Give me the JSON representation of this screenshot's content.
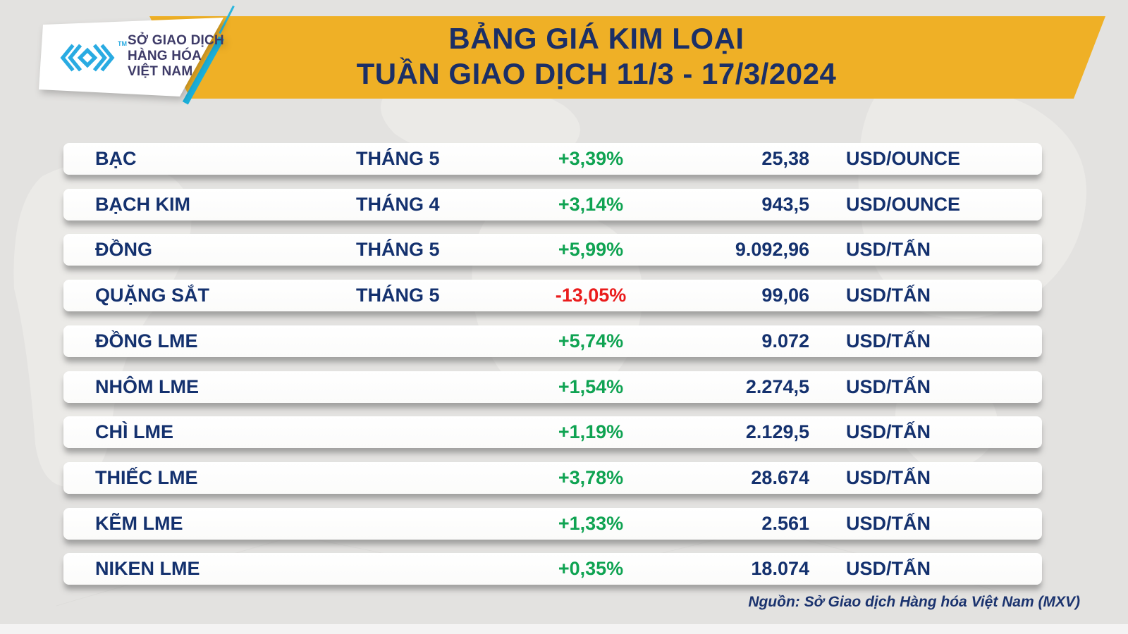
{
  "header": {
    "title_line1": "BẢNG GIÁ KIM LOẠI",
    "title_line2": "TUẦN GIAO DỊCH 11/3 - 17/3/2024"
  },
  "logo": {
    "org_line1": "SỞ GIAO DỊCH",
    "org_line2": "HÀNG HÓA",
    "org_line3": "VIỆT NAM",
    "trademark": "TM"
  },
  "table": {
    "rows": [
      {
        "name": "BẠC",
        "month": "THÁNG 5",
        "change": "+3,39%",
        "direction": "up",
        "value": "25,38",
        "unit": "USD/OUNCE"
      },
      {
        "name": "BẠCH KIM",
        "month": "THÁNG 4",
        "change": "+3,14%",
        "direction": "up",
        "value": "943,5",
        "unit": "USD/OUNCE"
      },
      {
        "name": "ĐỒNG",
        "month": "THÁNG 5",
        "change": "+5,99%",
        "direction": "up",
        "value": "9.092,96",
        "unit": "USD/TẤN"
      },
      {
        "name": "QUẶNG SẮT",
        "month": "THÁNG 5",
        "change": "-13,05%",
        "direction": "down",
        "value": "99,06",
        "unit": "USD/TẤN"
      },
      {
        "name": "ĐỒNG LME",
        "month": "",
        "change": "+5,74%",
        "direction": "up",
        "value": "9.072",
        "unit": "USD/TẤN"
      },
      {
        "name": "NHÔM LME",
        "month": "",
        "change": "+1,54%",
        "direction": "up",
        "value": "2.274,5",
        "unit": "USD/TẤN"
      },
      {
        "name": "CHÌ LME",
        "month": "",
        "change": "+1,19%",
        "direction": "up",
        "value": "2.129,5",
        "unit": "USD/TẤN"
      },
      {
        "name": "THIẾC LME",
        "month": "",
        "change": "+3,78%",
        "direction": "up",
        "value": "28.674",
        "unit": "USD/TẤN"
      },
      {
        "name": "KẼM LME",
        "month": "",
        "change": "+1,33%",
        "direction": "up",
        "value": "2.561",
        "unit": "USD/TẤN"
      },
      {
        "name": "NIKEN LME",
        "month": "",
        "change": "+0,35%",
        "direction": "up",
        "value": "18.074",
        "unit": "USD/TẤN"
      }
    ]
  },
  "footer": {
    "source": "Nguồn: Sở Giao dịch Hàng hóa Việt Nam (MXV)"
  },
  "colors": {
    "banner_yellow": "#efb026",
    "navy_text": "#14316e",
    "title_navy": "#1b2f66",
    "green_up": "#0fa352",
    "red_down": "#ea1c1c",
    "logo_cyan": "#29abe2",
    "logo_text_indigo": "#3e3b68",
    "background_gray": "#e3e2e0"
  },
  "chart_data": {
    "type": "table",
    "title": "BẢNG GIÁ KIM LOẠI — TUẦN GIAO DỊCH 11/3 - 17/3/2024",
    "rows": [
      {
        "name": "BẠC",
        "month": "THÁNG 5",
        "change_pct": 3.39,
        "value": 25.38,
        "unit": "USD/OUNCE"
      },
      {
        "name": "BẠCH KIM",
        "month": "THÁNG 4",
        "change_pct": 3.14,
        "value": 943.5,
        "unit": "USD/OUNCE"
      },
      {
        "name": "ĐỒNG",
        "month": "THÁNG 5",
        "change_pct": 5.99,
        "value": 9092.96,
        "unit": "USD/TẤN"
      },
      {
        "name": "QUẶNG SẮT",
        "month": "THÁNG 5",
        "change_pct": -13.05,
        "value": 99.06,
        "unit": "USD/TẤN"
      },
      {
        "name": "ĐỒNG LME",
        "month": "",
        "change_pct": 5.74,
        "value": 9072,
        "unit": "USD/TẤN"
      },
      {
        "name": "NHÔM LME",
        "month": "",
        "change_pct": 1.54,
        "value": 2274.5,
        "unit": "USD/TẤN"
      },
      {
        "name": "CHÌ LME",
        "month": "",
        "change_pct": 1.19,
        "value": 2129.5,
        "unit": "USD/TẤN"
      },
      {
        "name": "THIẾC LME",
        "month": "",
        "change_pct": 3.78,
        "value": 28674,
        "unit": "USD/TẤN"
      },
      {
        "name": "KẼM LME",
        "month": "",
        "change_pct": 1.33,
        "value": 2561,
        "unit": "USD/TẤN"
      },
      {
        "name": "NIKEN LME",
        "month": "",
        "change_pct": 0.35,
        "value": 18074,
        "unit": "USD/TẤN"
      }
    ]
  }
}
